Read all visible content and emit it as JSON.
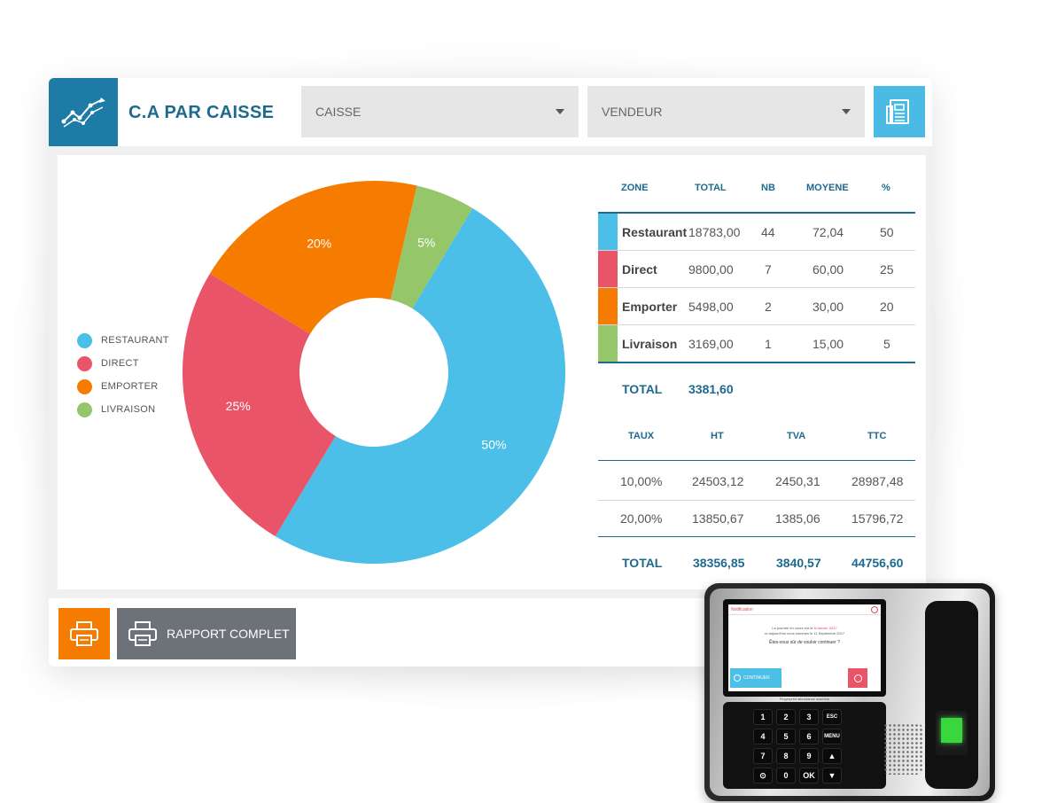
{
  "header": {
    "title": "C.A PAR CAISSE",
    "caisse_select": "CAISSE",
    "vendeur_select": "VENDEUR",
    "logo_icon": "trend-chart-icon",
    "report_icon": "document-icon"
  },
  "legend": [
    {
      "label": "RESTAURANT",
      "color": "#4bbfe8"
    },
    {
      "label": "DIRECT",
      "color": "#ea5468"
    },
    {
      "label": "EMPORTER",
      "color": "#f57c00"
    },
    {
      "label": "LIVRAISON",
      "color": "#95c66a"
    }
  ],
  "chart_data": {
    "type": "pie",
    "labels": [
      "Restaurant",
      "Direct",
      "Emporter",
      "Livraison"
    ],
    "values": [
      50,
      25,
      20,
      5
    ],
    "value_labels": [
      "50%",
      "25%",
      "20%",
      "5%"
    ],
    "colors": [
      "#4bbfe8",
      "#ea5468",
      "#f57c00",
      "#95c66a"
    ],
    "donut": true
  },
  "zone_table": {
    "headers": [
      "ZONE",
      "TOTAL",
      "NB",
      "MOYENE",
      "%"
    ],
    "rows": [
      {
        "zone": "Restaurant",
        "total": "18783,00",
        "nb": "44",
        "moyenne": "72,04",
        "pct": "50",
        "color": "#4bbfe8"
      },
      {
        "zone": "Direct",
        "total": "9800,00",
        "nb": "7",
        "moyenne": "60,00",
        "pct": "25",
        "color": "#ea5468"
      },
      {
        "zone": "Emporter",
        "total": "5498,00",
        "nb": "2",
        "moyenne": "30,00",
        "pct": "20",
        "color": "#f57c00"
      },
      {
        "zone": "Livraison",
        "total": "3169,00",
        "nb": "1",
        "moyenne": "15,00",
        "pct": "5",
        "color": "#95c66a"
      }
    ],
    "total_label": "TOTAL",
    "total_value": "3381,60"
  },
  "tax_table": {
    "headers": [
      "TAUX",
      "HT",
      "TVA",
      "TTC"
    ],
    "rows": [
      {
        "taux": "10,00%",
        "ht": "24503,12",
        "tva": "2450,31",
        "ttc": "28987,48"
      },
      {
        "taux": "20,00%",
        "ht": "13850,67",
        "tva": "1385,06",
        "ttc": "15796,72"
      }
    ],
    "total_label": "TOTAL",
    "total_ht": "38356,85",
    "total_tva": "3840,57",
    "total_ttc": "44756,60"
  },
  "footer": {
    "print_icon": "printer-icon",
    "report_button": "RAPPORT COMPLET"
  },
  "device": {
    "screen_header": "Notification",
    "screen_line1": "La journée en cours est le",
    "screen_date1": "8/Janvier 2017",
    "screen_line2": "or aujourd'hui nous sommes le 11 Septembre 2017",
    "screen_question": "Êtes-vous sûr de vouloir continuer ?",
    "continue_label": "CONTINUER",
    "device_caption": "Fingerprint attendance machine",
    "keys": [
      [
        "1",
        "2",
        "3",
        "ESC"
      ],
      [
        "4",
        "5",
        "6",
        "MENU"
      ],
      [
        "7",
        "8",
        "9",
        "▲"
      ],
      [
        "⊙",
        "0",
        "OK",
        "▼"
      ]
    ]
  }
}
